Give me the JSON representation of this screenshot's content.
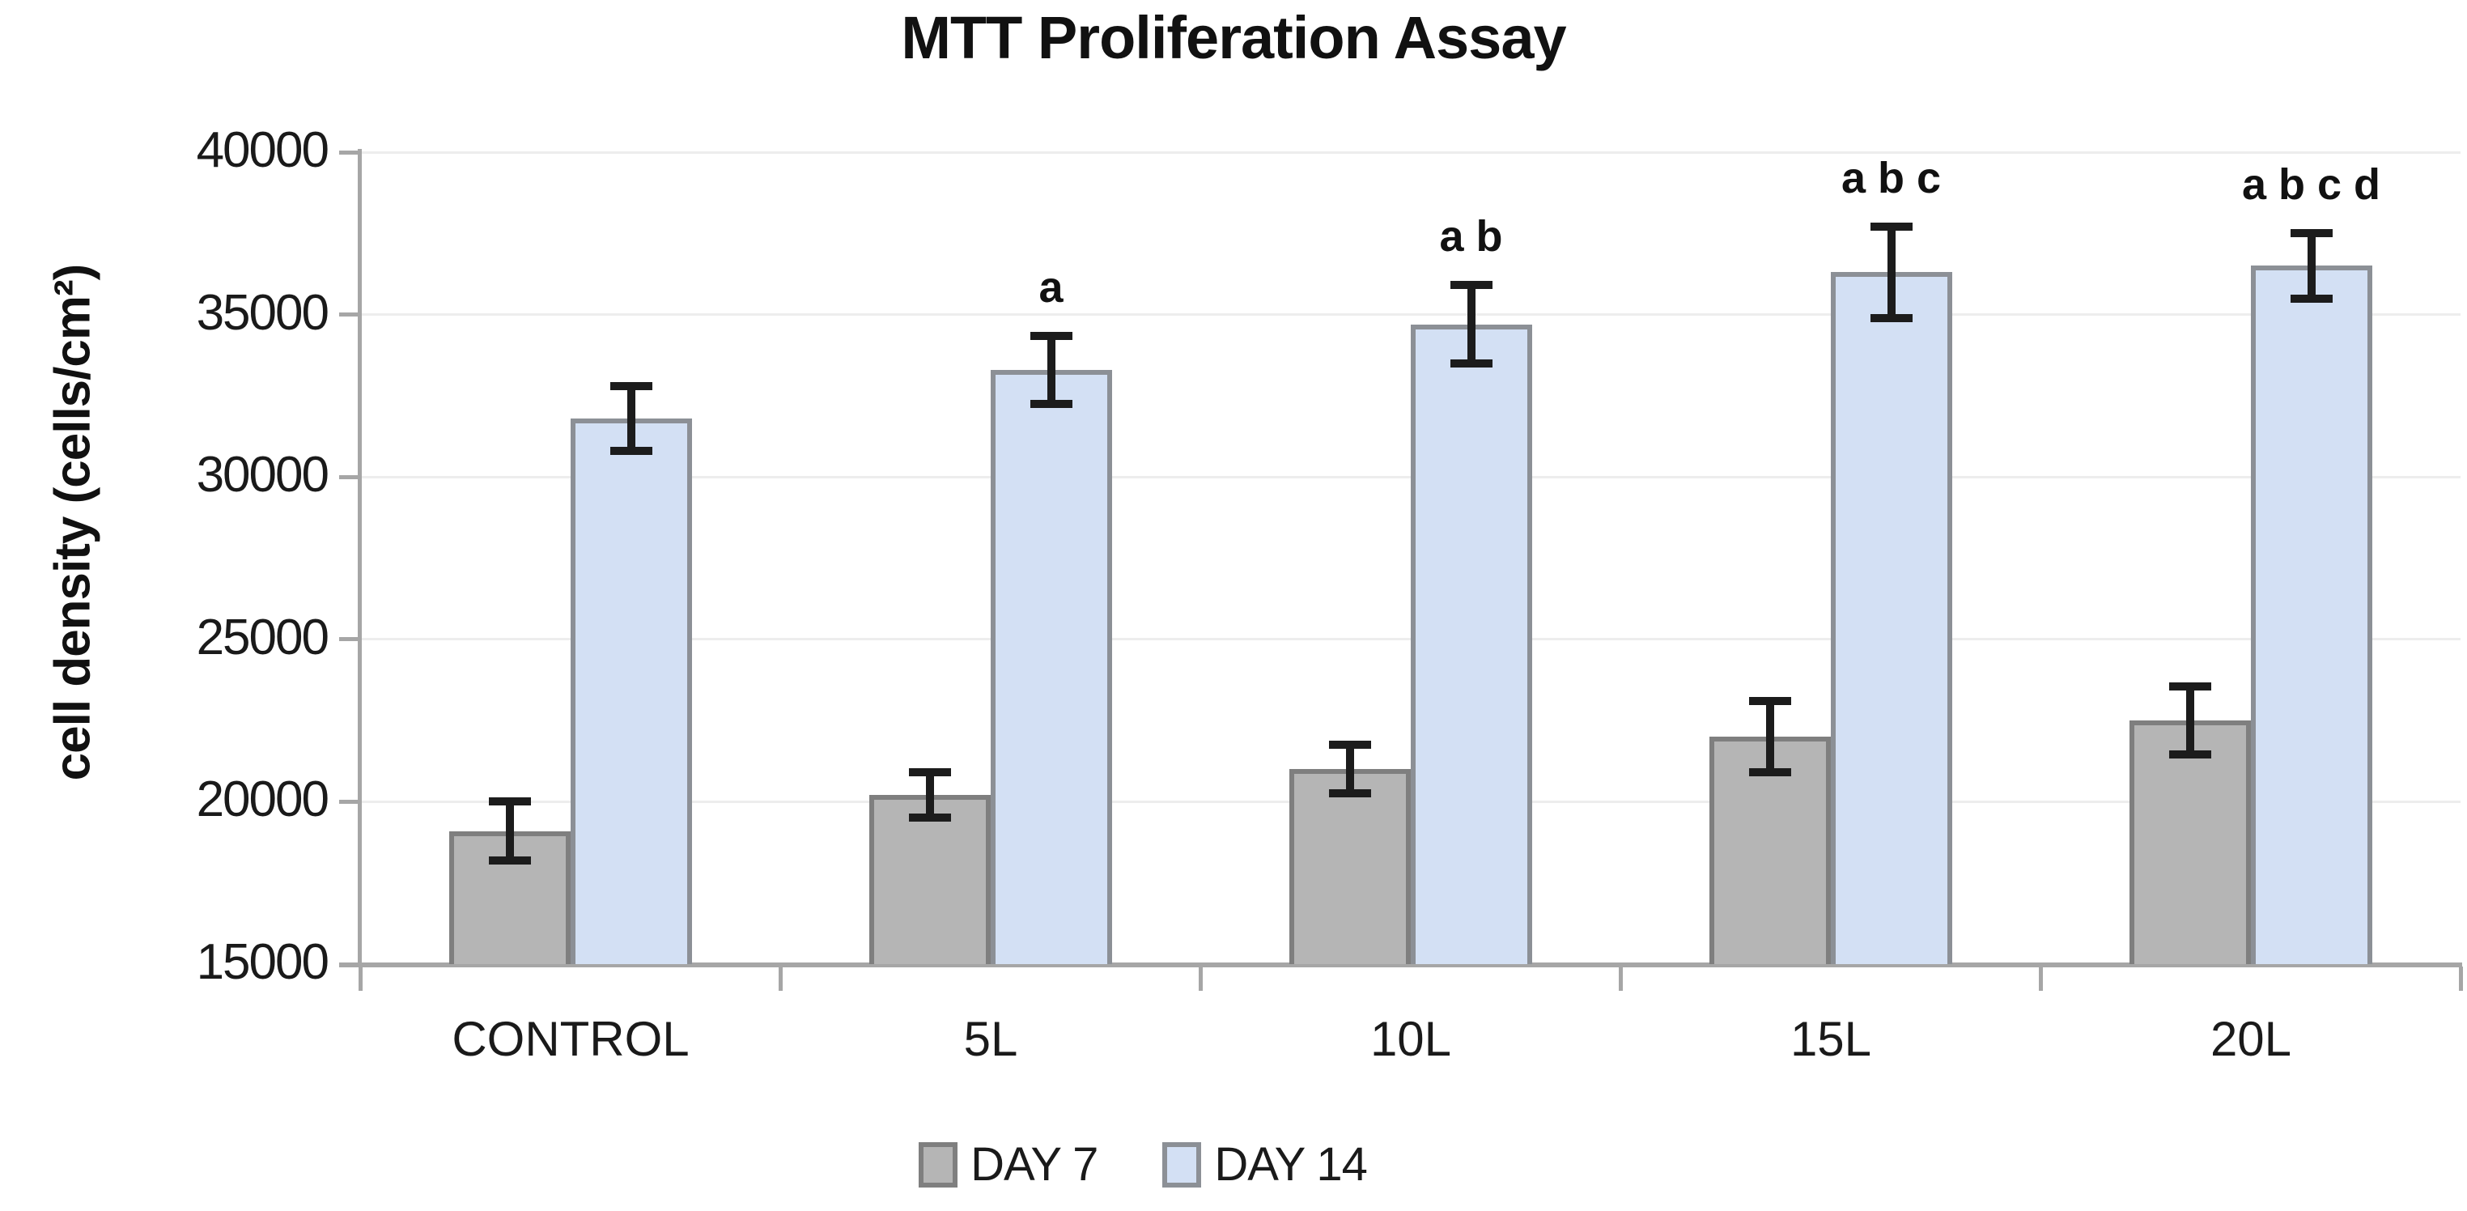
{
  "title": "MTT Proliferation Assay",
  "y_axis": {
    "label": "cell density (cells/cm²)",
    "tick_labels": [
      "15000",
      "20000",
      "25000",
      "30000",
      "35000",
      "40000"
    ]
  },
  "x_axis": {
    "categories": [
      "CONTROL",
      "5L",
      "10L",
      "15L",
      "20L"
    ]
  },
  "legend": {
    "items": [
      {
        "label": "DAY 7",
        "fill": "#b5b5b5",
        "border": "#7f7f7f"
      },
      {
        "label": "DAY 14",
        "fill": "#d3e0f4",
        "border": "#8c9096"
      }
    ]
  },
  "colors": {
    "axis": "#a6a6a6",
    "grid": "#ededed",
    "error_bar": "#1c1c1c",
    "title_text": "#111111"
  },
  "chart_data": {
    "type": "bar",
    "title": "MTT Proliferation Assay",
    "xlabel": "",
    "ylabel": "cell density (cells/cm²)",
    "categories": [
      "CONTROL",
      "5L",
      "10L",
      "15L",
      "20L"
    ],
    "series": [
      {
        "name": "DAY 7",
        "fill": "#b5b5b5",
        "border": "#7f7f7f",
        "values": [
          19100,
          20200,
          21000,
          22000,
          22500
        ],
        "errors": [
          900,
          700,
          750,
          1100,
          1050
        ]
      },
      {
        "name": "DAY 14",
        "fill": "#d3e0f4",
        "border": "#8c9096",
        "values": [
          31800,
          33300,
          34700,
          36300,
          36500
        ],
        "errors": [
          1000,
          1050,
          1200,
          1400,
          1000
        ]
      }
    ],
    "annotations": [
      "",
      "a",
      "a b",
      "a b c",
      "a b c d"
    ],
    "annotation_target_series": "DAY 14",
    "ylim": [
      15000,
      40000
    ],
    "ystep": 5000,
    "grid": true,
    "legend_position": "bottom"
  }
}
